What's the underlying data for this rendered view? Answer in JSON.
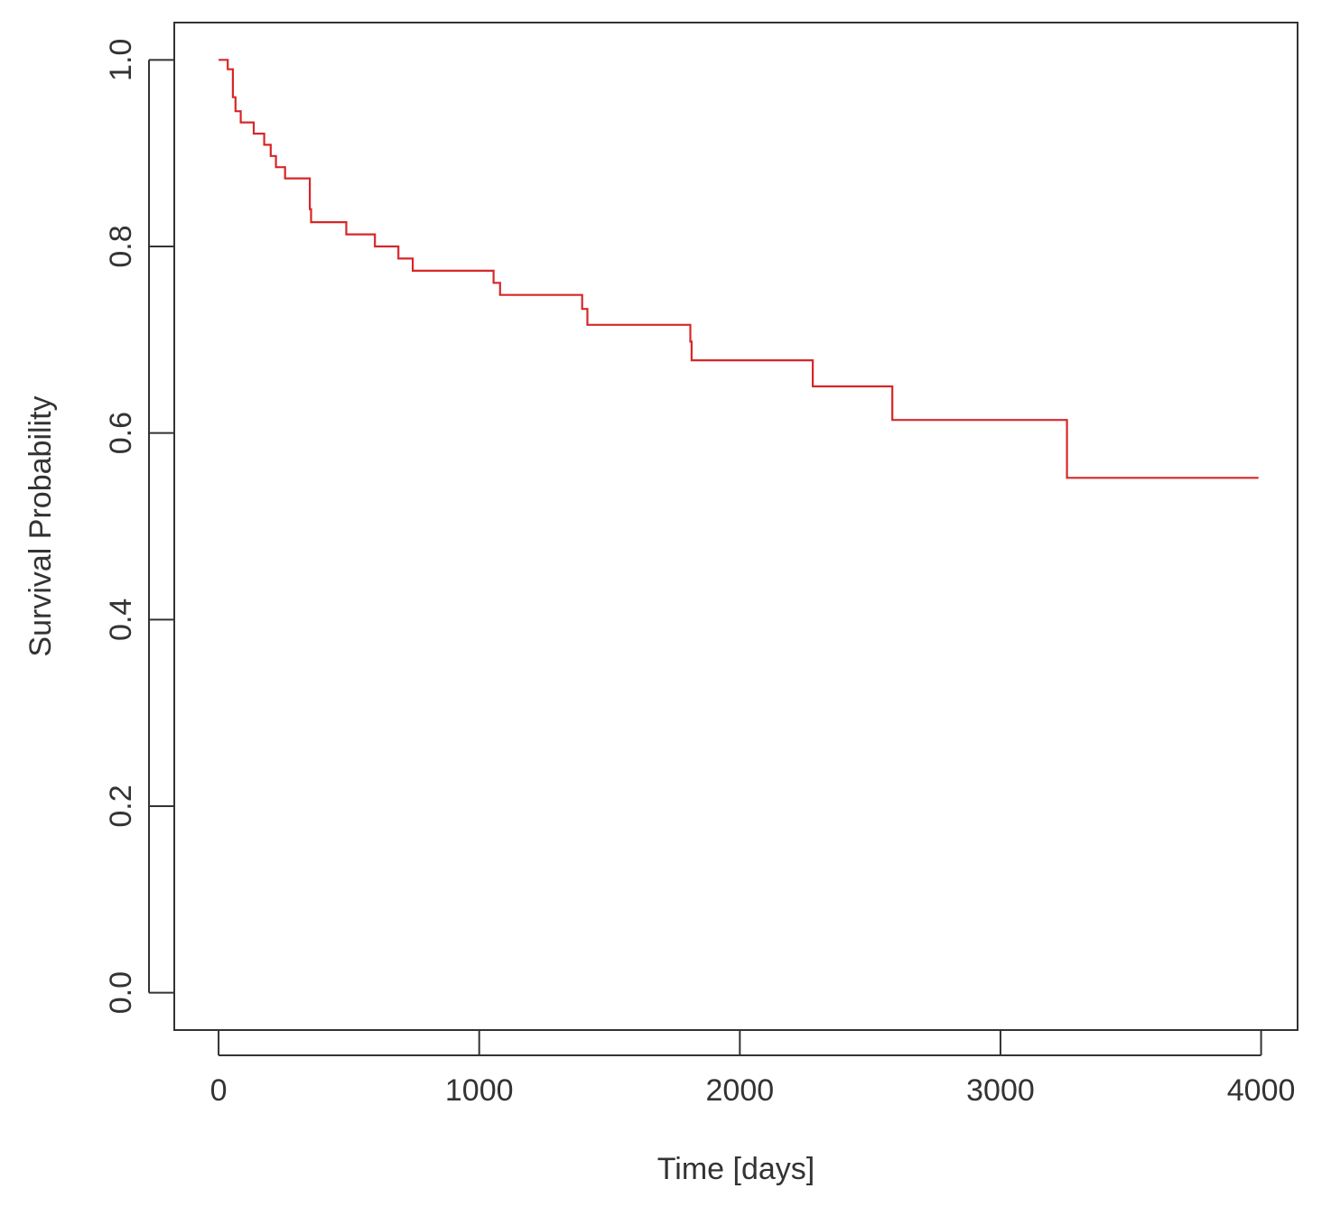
{
  "chart_data": {
    "type": "line",
    "title": "",
    "xlabel": "Time [days]",
    "ylabel": "Survival Probability",
    "xlim": [
      -170,
      4140
    ],
    "ylim": [
      -0.04,
      1.04
    ],
    "x_ticks": [
      0,
      1000,
      2000,
      3000,
      4000
    ],
    "x_tick_labels": [
      "0",
      "1000",
      "2000",
      "3000",
      "4000"
    ],
    "y_ticks": [
      0.0,
      0.2,
      0.4,
      0.6,
      0.8,
      1.0
    ],
    "y_tick_labels": [
      "0.0",
      "0.2",
      "0.4",
      "0.6",
      "0.8",
      "1.0"
    ],
    "grid": false,
    "legend": "none",
    "step": "post",
    "series": [
      {
        "color": "#d62728",
        "x": [
          0,
          35,
          55,
          65,
          85,
          135,
          175,
          200,
          220,
          255,
          265,
          350,
          355,
          490,
          600,
          690,
          745,
          1055,
          1080,
          1395,
          1415,
          1810,
          1815,
          2280,
          2585,
          3255,
          3990
        ],
        "y": [
          1.0,
          0.99,
          0.96,
          0.945,
          0.933,
          0.921,
          0.909,
          0.897,
          0.885,
          0.873,
          0.873,
          0.84,
          0.826,
          0.813,
          0.8,
          0.787,
          0.774,
          0.761,
          0.748,
          0.733,
          0.716,
          0.698,
          0.678,
          0.65,
          0.614,
          0.552,
          0.552
        ]
      }
    ]
  }
}
